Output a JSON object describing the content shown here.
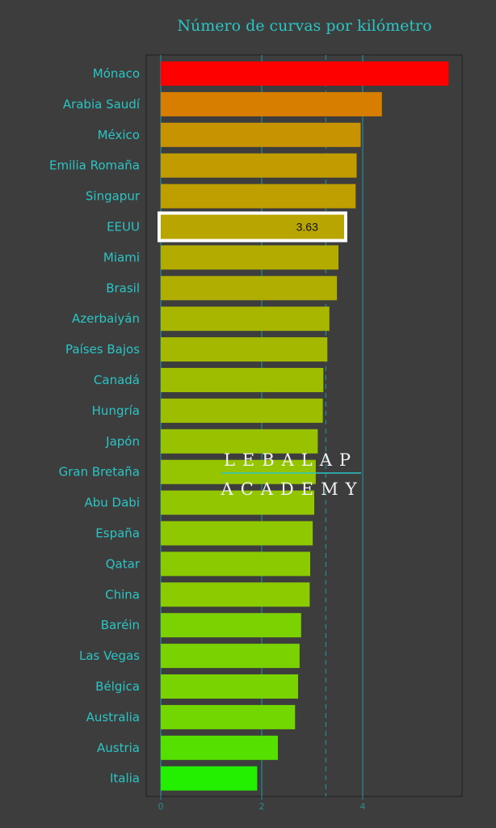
{
  "chart_data": {
    "type": "bar",
    "orientation": "horizontal",
    "title": "Número de curvas por kilómetro",
    "xlabel": "",
    "ylabel": "",
    "categories": [
      "Mónaco",
      "Arabia Saudí",
      "México",
      "Emilia Romaña",
      "Singapur",
      "EEUU",
      "Miami",
      "Brasil",
      "Azerbaiyán",
      "Países Bajos",
      "Canadá",
      "Hungría",
      "Japón",
      "Gran Bretaña",
      "Abu Dabi",
      "España",
      "Qatar",
      "China",
      "Baréin",
      "Las Vegas",
      "Bélgica",
      "Australia",
      "Austria",
      "Italia"
    ],
    "values": [
      5.7,
      4.38,
      3.96,
      3.88,
      3.86,
      3.63,
      3.52,
      3.49,
      3.34,
      3.3,
      3.22,
      3.21,
      3.11,
      3.07,
      3.04,
      3.01,
      2.96,
      2.95,
      2.78,
      2.75,
      2.72,
      2.66,
      2.32,
      1.91
    ],
    "bar_colors": [
      "#ff0000",
      "#d77e00",
      "#c79400",
      "#c19b00",
      "#bf9e00",
      "#b8a500",
      "#b3ab00",
      "#b0ae00",
      "#a8b600",
      "#a5b800",
      "#9fbd00",
      "#9dbe00",
      "#98c200",
      "#95c400",
      "#92c600",
      "#90c800",
      "#8cca00",
      "#8bcb00",
      "#7cd100",
      "#7ad200",
      "#78d300",
      "#72d600",
      "#55e000",
      "#22f000"
    ],
    "highlight": {
      "category": "EEUU",
      "value_label": "3.63"
    },
    "x_ticks": [
      0,
      2,
      4
    ],
    "x_tick_labels": [
      "0",
      "2",
      "4"
    ],
    "xlim": [
      -0.3,
      5.96
    ],
    "reference_lines": {
      "solid": [
        0,
        2,
        4
      ],
      "dashed": [
        3.27
      ]
    },
    "grid": false,
    "legend": "none",
    "colors": {
      "background": "#3d3d3d",
      "label": "#2cc4c4",
      "gridline": "#2a8a94",
      "watermark": "#f2f2f2",
      "highlight_border": "#ffffff"
    }
  },
  "watermark": {
    "line1": "LEBALAP",
    "line2": "ACADEMY"
  }
}
